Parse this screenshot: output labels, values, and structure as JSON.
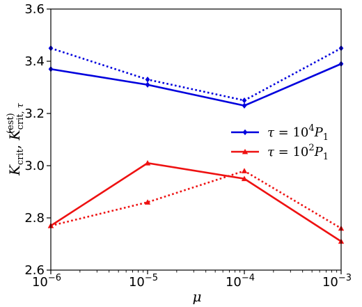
{
  "chart_data": {
    "type": "line",
    "xscale": "log",
    "x": [
      1e-06,
      1e-05,
      0.0001,
      0.001
    ],
    "x_tick_labels": [
      {
        "base": "10",
        "exp": "−6"
      },
      {
        "base": "10",
        "exp": "−5"
      },
      {
        "base": "10",
        "exp": "−4"
      },
      {
        "base": "10",
        "exp": "−3"
      }
    ],
    "xlim": [
      1e-06,
      0.001
    ],
    "ylim": [
      2.6,
      3.6
    ],
    "y_ticks": [
      "2.6",
      "2.8",
      "3.0",
      "3.2",
      "3.4",
      "3.6"
    ],
    "xlabel": "μ",
    "ylabel": "K_crit, K^(est)_crit,τ",
    "grid": false,
    "legend_position": "center-right",
    "series": [
      {
        "name": "τ = 10^4 P_1",
        "legend_base": "10",
        "legend_exp": "4",
        "color": "#0000dd",
        "marker": "diamond",
        "style": "solid",
        "values": [
          3.37,
          3.31,
          3.23,
          3.39
        ]
      },
      {
        "name": "τ = 10^4 P_1 (est)",
        "color": "#0000dd",
        "marker": "diamond",
        "style": "dotted",
        "values": [
          3.45,
          3.33,
          3.25,
          3.45
        ]
      },
      {
        "name": "τ = 10^2 P_1",
        "legend_base": "10",
        "legend_exp": "2",
        "color": "#ee1111",
        "marker": "triangle",
        "style": "solid",
        "values": [
          2.77,
          3.01,
          2.95,
          2.71
        ]
      },
      {
        "name": "τ = 10^2 P_1 (est)",
        "color": "#ee1111",
        "marker": "triangle",
        "style": "dotted",
        "values": [
          2.77,
          2.86,
          2.98,
          2.76
        ]
      }
    ]
  }
}
